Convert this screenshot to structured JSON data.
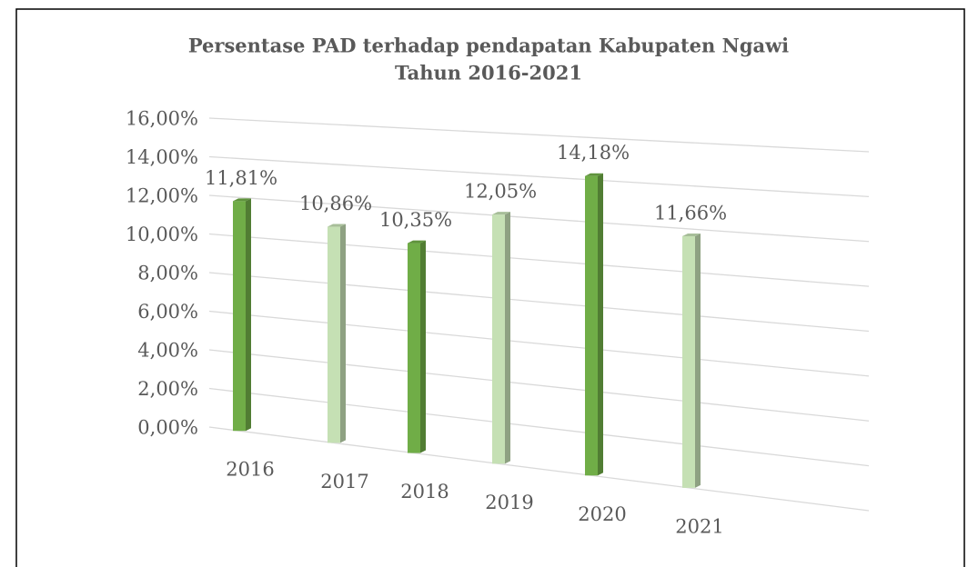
{
  "chart_data": {
    "type": "bar",
    "title": [
      "Persentase PAD terhadap pendapatan Kabupaten Ngawi",
      "Tahun 2016-2021"
    ],
    "categories": [
      "2016",
      "2017",
      "2018",
      "2019",
      "2020",
      "2021"
    ],
    "values": [
      11.81,
      10.86,
      10.35,
      12.05,
      14.18,
      11.66
    ],
    "value_labels": [
      "11,81%",
      "10,86%",
      "10,35%",
      "12,05%",
      "14,18%",
      "11,66%"
    ],
    "colors": [
      "#70ad47",
      "#c5e0b4",
      "#70ad47",
      "#c5e0b4",
      "#70ad47",
      "#c5e0b4"
    ],
    "ylim": [
      0,
      16
    ],
    "yticks": [
      {
        "value": 0,
        "label": "0,00%"
      },
      {
        "value": 2,
        "label": "2,00%"
      },
      {
        "value": 4,
        "label": "4,00%"
      },
      {
        "value": 6,
        "label": "6,00%"
      },
      {
        "value": 8,
        "label": "8,00%"
      },
      {
        "value": 10,
        "label": "10,00%"
      },
      {
        "value": 12,
        "label": "12,00%"
      },
      {
        "value": 14,
        "label": "14,00%"
      },
      {
        "value": 16,
        "label": "16,00%"
      }
    ],
    "grid": true
  }
}
